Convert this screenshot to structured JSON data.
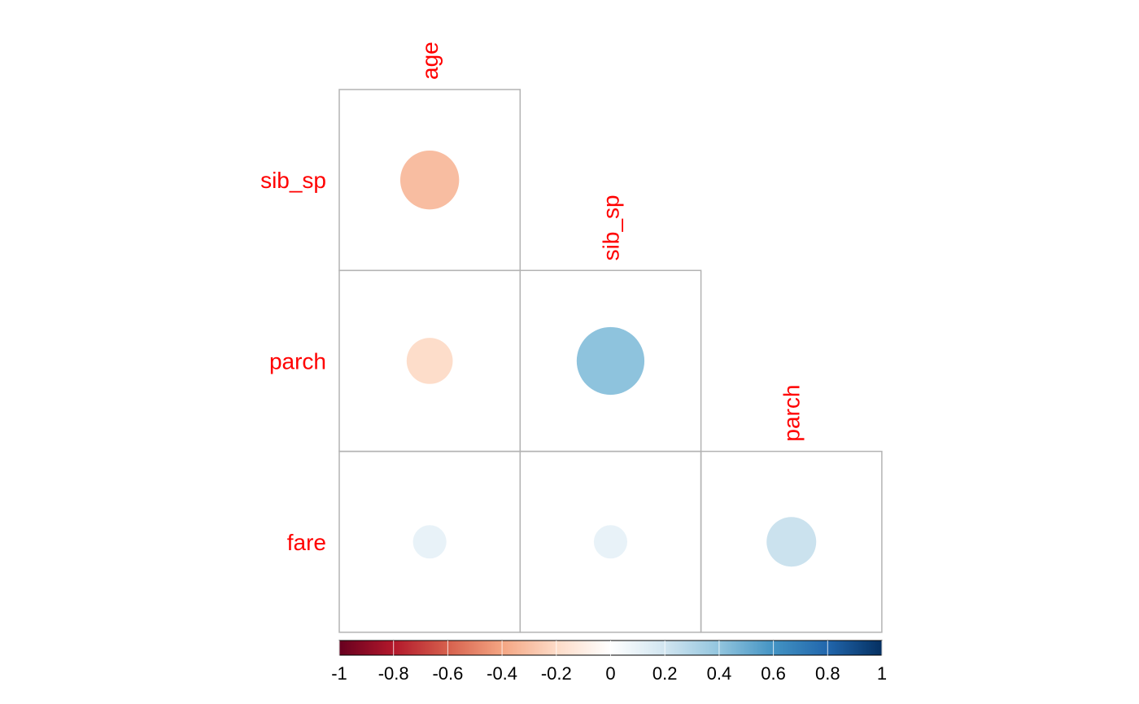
{
  "chart_data": {
    "type": "heatmap",
    "variables": [
      "age",
      "sib_sp",
      "parch",
      "fare"
    ],
    "label_color": "#ff0000",
    "lower_triangle": [
      {
        "row": "sib_sp",
        "col": "age",
        "value": -0.31
      },
      {
        "row": "parch",
        "col": "age",
        "value": -0.19
      },
      {
        "row": "parch",
        "col": "sib_sp",
        "value": 0.41
      },
      {
        "row": "fare",
        "col": "age",
        "value": 0.1
      },
      {
        "row": "fare",
        "col": "sib_sp",
        "value": 0.1
      },
      {
        "row": "fare",
        "col": "parch",
        "value": 0.22
      }
    ],
    "colorbar": {
      "range": [
        -1,
        1
      ],
      "ticks": [
        "-1",
        "-0.8",
        "-0.6",
        "-0.4",
        "-0.2",
        "0",
        "0.2",
        "0.4",
        "0.6",
        "0.8",
        "1"
      ],
      "palette": [
        "#67001f",
        "#b2182b",
        "#d6604d",
        "#f4a582",
        "#fddbc7",
        "#ffffff",
        "#d1e5f0",
        "#92c5de",
        "#4393c3",
        "#2166ac",
        "#053061"
      ]
    }
  }
}
